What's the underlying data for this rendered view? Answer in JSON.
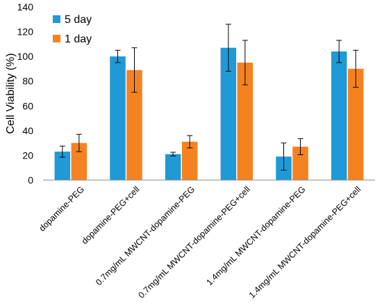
{
  "chart_data": {
    "type": "bar",
    "title": "",
    "xlabel": "",
    "ylabel": "Cell Viability (%)",
    "ylim": [
      0,
      140
    ],
    "yticks": [
      "0",
      "20",
      "40",
      "60",
      "80",
      "100",
      "120",
      "140"
    ],
    "grid": false,
    "legend_position": "top-left",
    "categories": [
      "dopamine-PEG",
      "dopamine-PEG+cell",
      "0.7mg/mL MWCNT-dopamine-PEG",
      "0.7mg/mL MWCNT-dopamine-PEG+cell",
      "1.4mg/mL MWCNT-dopamine-PEG",
      "1.4mg/mL MWCNT-dopamine-PEG+cell"
    ],
    "series": [
      {
        "name": "5 day",
        "color": "#1f9ad6",
        "values": [
          23,
          100,
          21,
          107,
          19,
          104
        ],
        "errors": [
          4.5,
          5,
          1.5,
          19,
          11,
          9
        ]
      },
      {
        "name": "1 day",
        "color": "#f58220",
        "values": [
          30,
          89,
          31,
          95,
          27,
          90
        ],
        "errors": [
          7,
          18,
          5,
          18,
          6.5,
          15
        ]
      }
    ]
  }
}
